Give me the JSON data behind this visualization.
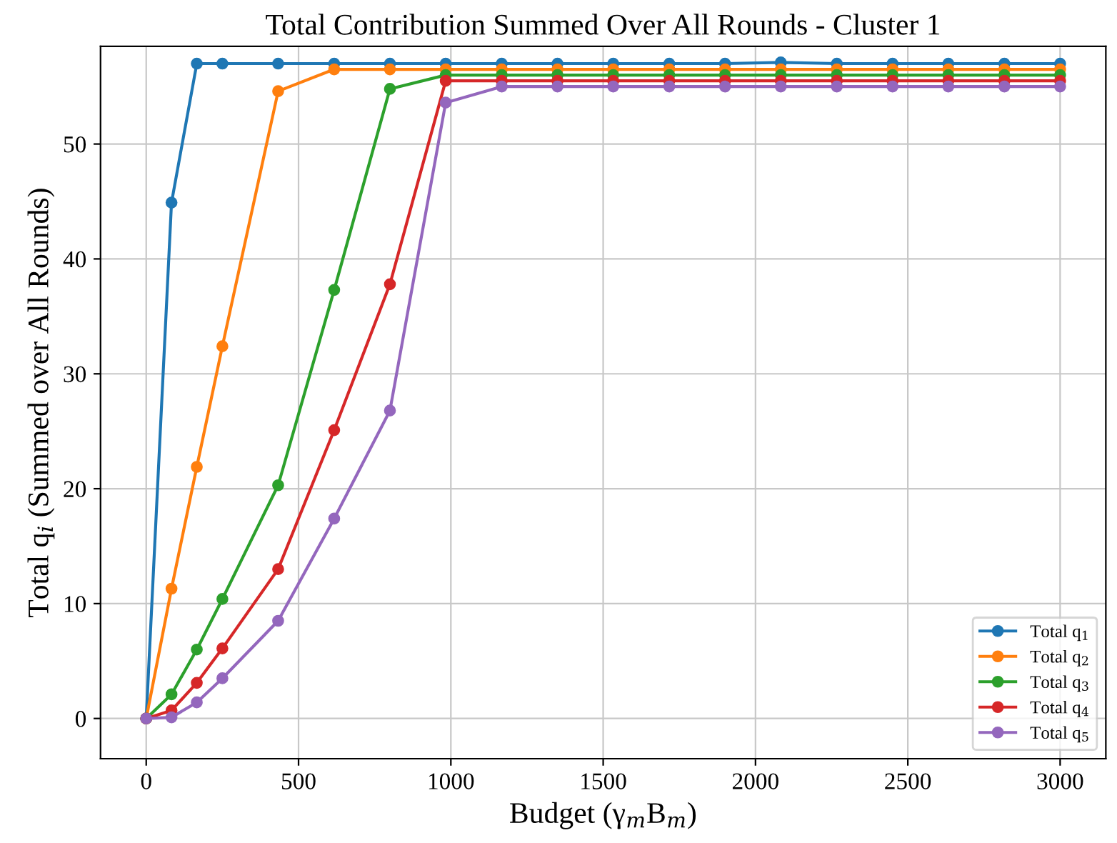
{
  "chart_data": {
    "type": "line",
    "title": "Total Contribution Summed Over All Rounds - Cluster 1",
    "xlabel": "Budget (γ$_{m}$B$_{m}$)",
    "ylabel": "Total q$_{i}$ (Summed over All Rounds)",
    "x": [
      0,
      83,
      166,
      250,
      433,
      617,
      800,
      983,
      1167,
      1350,
      1533,
      1717,
      1900,
      2083,
      2267,
      2450,
      2633,
      2817,
      3000
    ],
    "series": [
      {
        "name": "Total q$_{1}$",
        "color": "#1f77b4",
        "values": [
          0,
          44.9,
          57,
          57,
          57,
          57,
          57,
          57,
          57,
          57,
          57,
          57,
          57,
          57.1,
          57,
          57,
          57,
          57,
          57
        ]
      },
      {
        "name": "Total q$_{2}$",
        "color": "#ff7f0e",
        "values": [
          0,
          11.3,
          21.9,
          32.4,
          54.6,
          56.5,
          56.5,
          56.5,
          56.5,
          56.5,
          56.5,
          56.5,
          56.5,
          56.5,
          56.5,
          56.5,
          56.5,
          56.5,
          56.5
        ]
      },
      {
        "name": "Total q$_{3}$",
        "color": "#2ca02c",
        "values": [
          0,
          2.1,
          6.0,
          10.4,
          20.3,
          37.3,
          54.8,
          56,
          56,
          56,
          56,
          56,
          56,
          56,
          56,
          56,
          56,
          56,
          56
        ]
      },
      {
        "name": "Total q$_{4}$",
        "color": "#d62728",
        "values": [
          0,
          0.7,
          3.1,
          6.1,
          13.0,
          25.1,
          37.8,
          55.5,
          55.5,
          55.5,
          55.5,
          55.5,
          55.5,
          55.5,
          55.5,
          55.5,
          55.5,
          55.5,
          55.5
        ]
      },
      {
        "name": "Total q$_{5}$",
        "color": "#9467bd",
        "values": [
          0,
          0.1,
          1.4,
          3.5,
          8.5,
          17.4,
          26.8,
          53.6,
          55,
          55,
          55,
          55,
          55,
          55,
          55,
          55,
          55,
          55,
          55
        ]
      }
    ],
    "xlim": [
      -150,
      3150
    ],
    "ylim": [
      -3.5,
      58.5
    ],
    "xticks": [
      0,
      500,
      1000,
      1500,
      2000,
      2500,
      3000
    ],
    "yticks": [
      0,
      10,
      20,
      30,
      40,
      50
    ],
    "grid": true,
    "legend": "bottom right",
    "marker": "circle",
    "line_style": "solid"
  }
}
